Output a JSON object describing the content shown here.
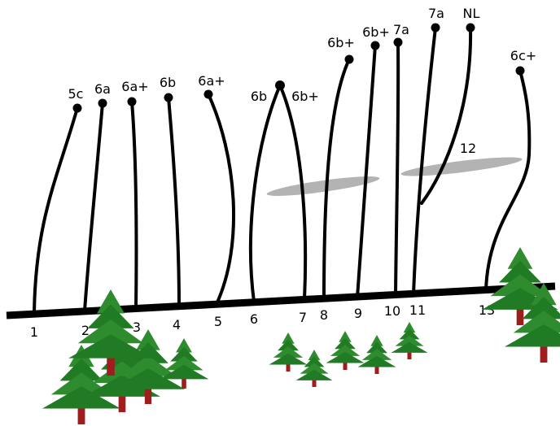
{
  "routes": [
    {
      "number": "1",
      "grade": "5c"
    },
    {
      "number": "2",
      "grade": "6a"
    },
    {
      "number": "3",
      "grade": "6a+"
    },
    {
      "number": "4",
      "grade": "6b"
    },
    {
      "number": "5",
      "grade": "6a+"
    },
    {
      "number": "6",
      "grade": "6b"
    },
    {
      "number": "7",
      "grade": "6b+"
    },
    {
      "number": "8",
      "grade": "6b+"
    },
    {
      "number": "9",
      "grade": "6b+"
    },
    {
      "number": "10",
      "grade": "7a"
    },
    {
      "number": "11",
      "grade": "7a"
    },
    {
      "number": "12",
      "grade": "NL"
    },
    {
      "number": "13",
      "grade": "6c+"
    }
  ],
  "colors": {
    "route_line": "#000000",
    "ground_line": "#000000",
    "ledge": "#b3b3b3",
    "tree_foliage": "#2e8b2e",
    "tree_trunk": "#a01d1d"
  }
}
